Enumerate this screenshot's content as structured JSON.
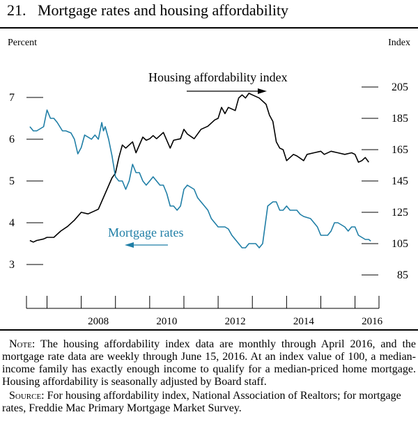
{
  "figure": {
    "number": "21.",
    "title": "Mortgage rates and housing affordability",
    "left_axis_label": "Percent",
    "right_axis_label": "Index"
  },
  "chart_data": {
    "type": "line",
    "x_ticks": [
      "2008",
      "2010",
      "2012",
      "2014",
      "2016"
    ],
    "xlim": [
      2006.4,
      2016.7
    ],
    "y_left": {
      "label": "Percent",
      "ticks": [
        "3",
        "4",
        "5",
        "6",
        "7"
      ],
      "ylim": [
        2.5,
        7.5
      ]
    },
    "y_right": {
      "label": "Index",
      "ticks": [
        "85",
        "105",
        "125",
        "145",
        "165",
        "185",
        "205"
      ],
      "ylim": [
        78,
        215
      ]
    },
    "series": [
      {
        "name": "Housing affordability index",
        "axis": "right",
        "color": "#000000",
        "frequency": "monthly",
        "points": [
          [
            2006.5,
            107
          ],
          [
            2006.6,
            106
          ],
          [
            2006.7,
            107
          ],
          [
            2006.9,
            108
          ],
          [
            2007.0,
            109
          ],
          [
            2007.2,
            109
          ],
          [
            2007.4,
            113
          ],
          [
            2007.6,
            116
          ],
          [
            2007.8,
            120
          ],
          [
            2008.0,
            125
          ],
          [
            2008.2,
            124
          ],
          [
            2008.4,
            126
          ],
          [
            2008.5,
            127
          ],
          [
            2008.7,
            137
          ],
          [
            2008.9,
            147
          ],
          [
            2009.0,
            150
          ],
          [
            2009.1,
            160
          ],
          [
            2009.2,
            168
          ],
          [
            2009.3,
            166
          ],
          [
            2009.5,
            170
          ],
          [
            2009.6,
            163
          ],
          [
            2009.8,
            173
          ],
          [
            2009.9,
            171
          ],
          [
            2010.0,
            172
          ],
          [
            2010.1,
            174
          ],
          [
            2010.2,
            172
          ],
          [
            2010.4,
            176
          ],
          [
            2010.6,
            166
          ],
          [
            2010.7,
            171
          ],
          [
            2010.9,
            172
          ],
          [
            2011.0,
            178
          ],
          [
            2011.1,
            175
          ],
          [
            2011.3,
            172
          ],
          [
            2011.5,
            178
          ],
          [
            2011.7,
            180
          ],
          [
            2011.9,
            184
          ],
          [
            2012.0,
            185
          ],
          [
            2012.1,
            192
          ],
          [
            2012.2,
            188
          ],
          [
            2012.3,
            192
          ],
          [
            2012.5,
            190
          ],
          [
            2012.6,
            198
          ],
          [
            2012.7,
            200
          ],
          [
            2012.8,
            198
          ],
          [
            2012.9,
            201
          ],
          [
            2013.0,
            200
          ],
          [
            2013.2,
            198
          ],
          [
            2013.4,
            194
          ],
          [
            2013.5,
            187
          ],
          [
            2013.6,
            183
          ],
          [
            2013.7,
            170
          ],
          [
            2013.8,
            166
          ],
          [
            2013.9,
            165
          ],
          [
            2014.0,
            158
          ],
          [
            2014.2,
            162
          ],
          [
            2014.3,
            161
          ],
          [
            2014.5,
            158
          ],
          [
            2014.6,
            162
          ],
          [
            2014.8,
            163
          ],
          [
            2015.0,
            164
          ],
          [
            2015.1,
            162
          ],
          [
            2015.3,
            164
          ],
          [
            2015.5,
            163
          ],
          [
            2015.7,
            162
          ],
          [
            2015.9,
            163
          ],
          [
            2016.0,
            162
          ],
          [
            2016.1,
            157
          ],
          [
            2016.2,
            158
          ],
          [
            2016.3,
            160
          ],
          [
            2016.4,
            157
          ]
        ]
      },
      {
        "name": "Mortgage rates",
        "axis": "left",
        "color": "#1f7ea6",
        "frequency": "weekly",
        "points": [
          [
            2006.5,
            6.3
          ],
          [
            2006.6,
            6.2
          ],
          [
            2006.7,
            6.2
          ],
          [
            2006.9,
            6.3
          ],
          [
            2007.0,
            6.7
          ],
          [
            2007.1,
            6.5
          ],
          [
            2007.2,
            6.5
          ],
          [
            2007.3,
            6.4
          ],
          [
            2007.45,
            6.2
          ],
          [
            2007.55,
            6.2
          ],
          [
            2007.7,
            6.15
          ],
          [
            2007.8,
            6.0
          ],
          [
            2007.9,
            5.65
          ],
          [
            2008.0,
            5.8
          ],
          [
            2008.1,
            6.1
          ],
          [
            2008.3,
            6.0
          ],
          [
            2008.4,
            6.1
          ],
          [
            2008.5,
            6.0
          ],
          [
            2008.6,
            6.4
          ],
          [
            2008.65,
            6.2
          ],
          [
            2008.7,
            6.3
          ],
          [
            2008.8,
            6.0
          ],
          [
            2008.9,
            5.6
          ],
          [
            2009.0,
            5.1
          ],
          [
            2009.1,
            5.0
          ],
          [
            2009.2,
            5.0
          ],
          [
            2009.3,
            4.8
          ],
          [
            2009.4,
            5.0
          ],
          [
            2009.5,
            5.4
          ],
          [
            2009.6,
            5.2
          ],
          [
            2009.7,
            5.2
          ],
          [
            2009.8,
            5.0
          ],
          [
            2009.9,
            4.9
          ],
          [
            2010.0,
            5.0
          ],
          [
            2010.1,
            5.1
          ],
          [
            2010.2,
            5.0
          ],
          [
            2010.3,
            4.9
          ],
          [
            2010.4,
            4.9
          ],
          [
            2010.5,
            4.7
          ],
          [
            2010.6,
            4.4
          ],
          [
            2010.7,
            4.4
          ],
          [
            2010.8,
            4.3
          ],
          [
            2010.9,
            4.4
          ],
          [
            2011.0,
            4.8
          ],
          [
            2011.1,
            4.9
          ],
          [
            2011.3,
            4.8
          ],
          [
            2011.4,
            4.6
          ],
          [
            2011.5,
            4.5
          ],
          [
            2011.6,
            4.4
          ],
          [
            2011.7,
            4.3
          ],
          [
            2011.8,
            4.1
          ],
          [
            2011.9,
            4.0
          ],
          [
            2012.0,
            3.9
          ],
          [
            2012.2,
            3.9
          ],
          [
            2012.3,
            3.85
          ],
          [
            2012.4,
            3.7
          ],
          [
            2012.5,
            3.6
          ],
          [
            2012.6,
            3.5
          ],
          [
            2012.7,
            3.4
          ],
          [
            2012.8,
            3.4
          ],
          [
            2012.9,
            3.5
          ],
          [
            2013.0,
            3.5
          ],
          [
            2013.1,
            3.5
          ],
          [
            2013.2,
            3.4
          ],
          [
            2013.3,
            3.5
          ],
          [
            2013.45,
            4.4
          ],
          [
            2013.6,
            4.5
          ],
          [
            2013.7,
            4.5
          ],
          [
            2013.8,
            4.3
          ],
          [
            2013.9,
            4.3
          ],
          [
            2014.0,
            4.4
          ],
          [
            2014.1,
            4.3
          ],
          [
            2014.3,
            4.3
          ],
          [
            2014.4,
            4.2
          ],
          [
            2014.5,
            4.15
          ],
          [
            2014.7,
            4.1
          ],
          [
            2014.8,
            4.0
          ],
          [
            2014.9,
            3.9
          ],
          [
            2015.0,
            3.7
          ],
          [
            2015.1,
            3.7
          ],
          [
            2015.2,
            3.7
          ],
          [
            2015.3,
            3.8
          ],
          [
            2015.4,
            4.0
          ],
          [
            2015.5,
            4.0
          ],
          [
            2015.6,
            3.95
          ],
          [
            2015.7,
            3.9
          ],
          [
            2015.8,
            3.8
          ],
          [
            2015.9,
            3.9
          ],
          [
            2016.0,
            3.9
          ],
          [
            2016.1,
            3.7
          ],
          [
            2016.2,
            3.65
          ],
          [
            2016.3,
            3.6
          ],
          [
            2016.4,
            3.6
          ],
          [
            2016.46,
            3.56
          ]
        ]
      }
    ],
    "annotations": [
      {
        "text": "Housing affordability index",
        "arrow": "right"
      },
      {
        "text": "Mortgage rates",
        "arrow": "left"
      }
    ]
  },
  "notes": {
    "note_label": "Note:",
    "note_text": " The housing affordability index data are monthly through April 2016, and the mortgage rate data are weekly through June 15, 2016. At an index value of 100, a median-income family has exactly enough income to qualify for a median-priced home mortgage. Housing affordability is seasonally adjusted by Board staff.",
    "source_label": "Source:",
    "source_text": "  For housing affordability index, National Association of Realtors; for mortgage rates, Freddie Mac Primary Mortgage Market Survey."
  }
}
